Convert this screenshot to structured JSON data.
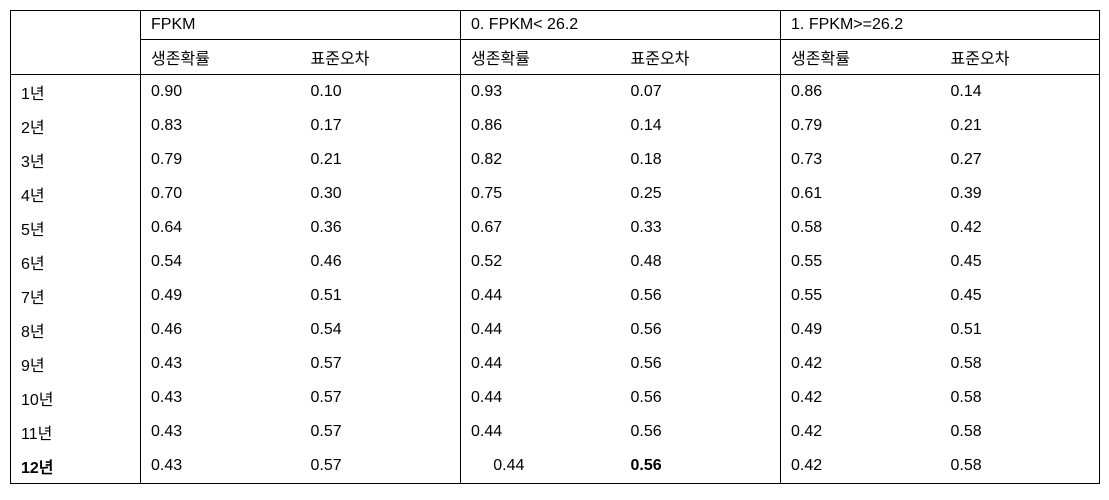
{
  "header": {
    "group1": "FPKM",
    "group2": "0.  FPKM<  26.2",
    "group3": "1.  FPKM>=26.2",
    "sub1": "생존확률",
    "sub2": "표준오차"
  },
  "last_row_bold_indices": [
    0,
    4
  ],
  "rows": [
    {
      "year": "1년",
      "a1": "0.90",
      "a2": "0.10",
      "b1": "0.93",
      "b2": "0.07",
      "c1": "0.86",
      "c2": "0.14"
    },
    {
      "year": "2년",
      "a1": "0.83",
      "a2": "0.17",
      "b1": "0.86",
      "b2": "0.14",
      "c1": "0.79",
      "c2": "0.21"
    },
    {
      "year": "3년",
      "a1": "0.79",
      "a2": "0.21",
      "b1": "0.82",
      "b2": "0.18",
      "c1": "0.73",
      "c2": "0.27"
    },
    {
      "year": "4년",
      "a1": "0.70",
      "a2": "0.30",
      "b1": "0.75",
      "b2": "0.25",
      "c1": "0.61",
      "c2": "0.39"
    },
    {
      "year": "5년",
      "a1": "0.64",
      "a2": "0.36",
      "b1": "0.67",
      "b2": "0.33",
      "c1": "0.58",
      "c2": "0.42"
    },
    {
      "year": "6년",
      "a1": "0.54",
      "a2": "0.46",
      "b1": "0.52",
      "b2": "0.48",
      "c1": "0.55",
      "c2": "0.45"
    },
    {
      "year": "7년",
      "a1": "0.49",
      "a2": "0.51",
      "b1": "0.44",
      "b2": "0.56",
      "c1": "0.55",
      "c2": "0.45"
    },
    {
      "year": "8년",
      "a1": "0.46",
      "a2": "0.54",
      "b1": "0.44",
      "b2": "0.56",
      "c1": "0.49",
      "c2": "0.51"
    },
    {
      "year": "9년",
      "a1": "0.43",
      "a2": "0.57",
      "b1": "0.44",
      "b2": "0.56",
      "c1": "0.42",
      "c2": "0.58"
    },
    {
      "year": "10년",
      "a1": "0.43",
      "a2": "0.57",
      "b1": "0.44",
      "b2": "0.56",
      "c1": "0.42",
      "c2": "0.58"
    },
    {
      "year": "11년",
      "a1": "0.43",
      "a2": "0.57",
      "b1": "0.44",
      "b2": "0.56",
      "c1": "0.42",
      "c2": "0.58"
    },
    {
      "year": "12년",
      "a1": "0.43",
      "a2": "0.57",
      "b1": "     0.44",
      "b2": "0.56",
      "c1": "0.42",
      "c2": "0.58"
    }
  ],
  "style": {
    "fontFamily": "Malgun Gothic",
    "fontSize": 16,
    "borderColor": "#000000",
    "background": "#ffffff",
    "textColor": "#000000"
  }
}
